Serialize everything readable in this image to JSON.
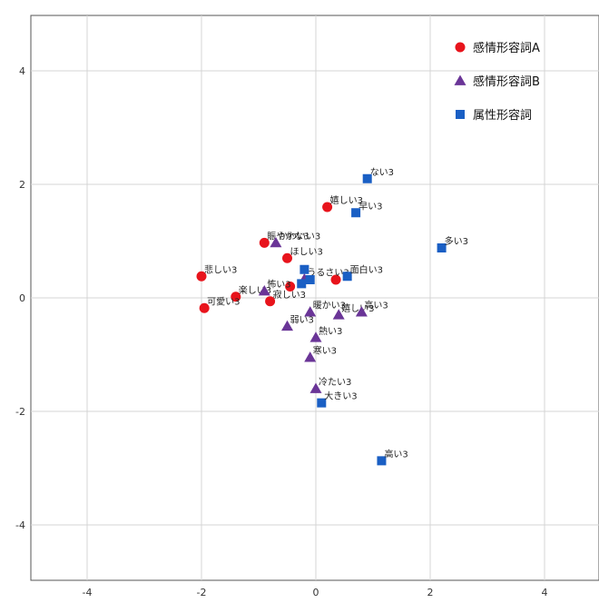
{
  "chart_data": {
    "type": "scatter",
    "title": "",
    "xlabel": "",
    "ylabel": "",
    "xlim": [
      -5,
      5
    ],
    "ylim": [
      -5,
      5
    ],
    "xticks": [
      -4,
      -2,
      0,
      2,
      4
    ],
    "yticks": [
      -4,
      -2,
      0,
      2,
      4
    ],
    "grid": true,
    "legend_position": "top-right",
    "series": [
      {
        "name": "感情形容詞A",
        "marker": "circle",
        "color": "#e8141c",
        "points": [
          {
            "x": 0.2,
            "y": 1.6,
            "label": "嬉しい3"
          },
          {
            "x": -0.9,
            "y": 0.97,
            "label": "賑やかな3"
          },
          {
            "x": -0.5,
            "y": 0.7,
            "label": "ほしい3"
          },
          {
            "x": -2.0,
            "y": 0.38,
            "label": "悲しい3"
          },
          {
            "x": -0.45,
            "y": 0.2,
            "label": ""
          },
          {
            "x": -1.4,
            "y": 0.02,
            "label": "楽しい3"
          },
          {
            "x": -0.8,
            "y": -0.06,
            "label": "寂しい3"
          },
          {
            "x": -1.95,
            "y": -0.18,
            "label": "可愛い3"
          },
          {
            "x": 0.35,
            "y": 0.32,
            "label": ""
          }
        ]
      },
      {
        "name": "感情形容詞B",
        "marker": "triangle",
        "color": "#6a3597",
        "points": [
          {
            "x": -0.7,
            "y": 0.97,
            "label": "かわいい3"
          },
          {
            "x": -0.9,
            "y": 0.12,
            "label": "怖い3"
          },
          {
            "x": -0.1,
            "y": -0.25,
            "label": "暖かい3"
          },
          {
            "x": 0.4,
            "y": -0.3,
            "label": "嬉しい3"
          },
          {
            "x": 0.8,
            "y": -0.25,
            "label": "高い3"
          },
          {
            "x": -0.5,
            "y": -0.5,
            "label": "弱い3"
          },
          {
            "x": 0.0,
            "y": -0.7,
            "label": "熱い3"
          },
          {
            "x": -0.1,
            "y": -1.05,
            "label": "寒い3"
          },
          {
            "x": 0.0,
            "y": -1.6,
            "label": "冷たい3"
          },
          {
            "x": -0.2,
            "y": 0.33,
            "label": "うるさい3"
          }
        ]
      },
      {
        "name": "属性形容詞",
        "marker": "square",
        "color": "#1a5fc4",
        "points": [
          {
            "x": 0.9,
            "y": 2.1,
            "label": "ない3"
          },
          {
            "x": 0.7,
            "y": 1.5,
            "label": "早い3"
          },
          {
            "x": 2.2,
            "y": 0.88,
            "label": "多い3"
          },
          {
            "x": -0.2,
            "y": 0.5,
            "label": ""
          },
          {
            "x": 0.55,
            "y": 0.38,
            "label": "面白い3"
          },
          {
            "x": -0.25,
            "y": 0.25,
            "label": ""
          },
          {
            "x": -0.1,
            "y": 0.32,
            "label": ""
          },
          {
            "x": 0.1,
            "y": -1.85,
            "label": "大きい3"
          },
          {
            "x": 1.15,
            "y": -2.87,
            "label": "高い3"
          }
        ]
      }
    ]
  }
}
